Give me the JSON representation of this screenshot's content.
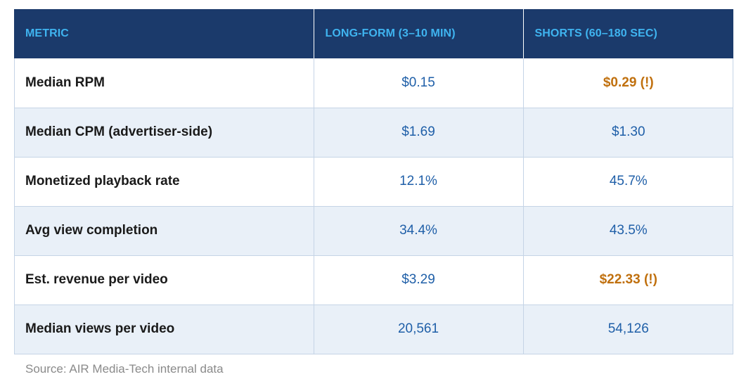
{
  "table": {
    "headers": [
      "METRIC",
      "LONG-FORM (3–10 MIN)",
      "SHORTS (60–180 SEC)"
    ],
    "rows": [
      {
        "metric": "Median RPM",
        "long_form": "$0.15",
        "shorts": "$0.29 (!)",
        "shorts_highlight": true
      },
      {
        "metric": "Median CPM (advertiser-side)",
        "long_form": "$1.69",
        "shorts": "$1.30",
        "shorts_highlight": false
      },
      {
        "metric": "Monetized playback rate",
        "long_form": "12.1%",
        "shorts": "45.7%",
        "shorts_highlight": false
      },
      {
        "metric": "Avg view completion",
        "long_form": "34.4%",
        "shorts": "43.5%",
        "shorts_highlight": false
      },
      {
        "metric": "Est. revenue per video",
        "long_form": "$3.29",
        "shorts": "$22.33 (!)",
        "shorts_highlight": true
      },
      {
        "metric": "Median views per video",
        "long_form": "20,561",
        "shorts": "54,126",
        "shorts_highlight": false
      }
    ]
  },
  "source": "Source: AIR Media-Tech internal data",
  "colors": {
    "header_bg": "#1b3a6b",
    "header_text": "#3fb4f0",
    "value_text": "#1f5fa8",
    "highlight_text": "#c0700e",
    "alt_row_bg": "#e9f0f8"
  }
}
